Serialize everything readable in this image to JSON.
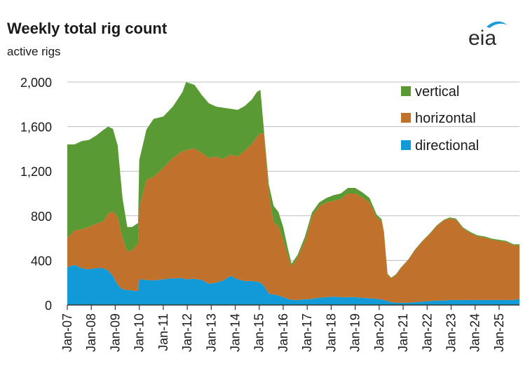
{
  "header": {
    "title": "Weekly total rig count",
    "subtitle": "active rigs",
    "logo_text": "eia"
  },
  "colors": {
    "vertical": "#5a9a34",
    "horizontal": "#c0712b",
    "directional": "#129ad8",
    "grid": "#bfbfbf",
    "axis": "#333333",
    "logo_blue": "#1d9bd7"
  },
  "chart_data": {
    "type": "area",
    "stacked": true,
    "ylim": [
      0,
      2000
    ],
    "yticks": [
      0,
      400,
      800,
      1200,
      1600,
      2000
    ],
    "ytick_labels": [
      "0",
      "400",
      "800",
      "1,200",
      "1,600",
      "2,000"
    ],
    "xlim": [
      2007.0,
      2025.85
    ],
    "xticks": [
      2007,
      2008,
      2009,
      2010,
      2011,
      2012,
      2013,
      2014,
      2015,
      2016,
      2017,
      2018,
      2019,
      2020,
      2021,
      2022,
      2023,
      2024,
      2025
    ],
    "xtick_labels": [
      "Jan-07",
      "Jan-08",
      "Jan-09",
      "Jan-10",
      "Jan-11",
      "Jan-12",
      "Jan-13",
      "Jan-14",
      "Jan-15",
      "Jan-16",
      "Jan-17",
      "Jan-18",
      "Jan-19",
      "Jan-20",
      "Jan-21",
      "Jan-22",
      "Jan-23",
      "Jan-24",
      "Jan-25"
    ],
    "legend": {
      "placement": "top-right",
      "order": [
        "vertical",
        "horizontal",
        "directional"
      ]
    },
    "grid": "horizontal",
    "x": [
      2007.0,
      2007.3,
      2007.6,
      2007.9,
      2008.2,
      2008.5,
      2008.7,
      2008.9,
      2009.1,
      2009.3,
      2009.5,
      2009.7,
      2009.95,
      2010.0,
      2010.3,
      2010.6,
      2011.0,
      2011.4,
      2011.8,
      2011.95,
      2012.3,
      2012.6,
      2012.9,
      2013.2,
      2013.5,
      2013.8,
      2014.1,
      2014.4,
      2014.7,
      2014.9,
      2015.05,
      2015.2,
      2015.4,
      2015.6,
      2015.8,
      2016.0,
      2016.2,
      2016.35,
      2016.6,
      2016.9,
      2017.2,
      2017.5,
      2017.8,
      2018.1,
      2018.4,
      2018.7,
      2019.0,
      2019.3,
      2019.6,
      2019.9,
      2020.1,
      2020.2,
      2020.35,
      2020.5,
      2020.7,
      2020.9,
      2021.2,
      2021.5,
      2021.8,
      2022.1,
      2022.4,
      2022.7,
      2022.95,
      2023.2,
      2023.5,
      2023.8,
      2024.1,
      2024.4,
      2024.7,
      2025.0,
      2025.3,
      2025.6,
      2025.85
    ],
    "series": [
      {
        "name": "directional",
        "values": [
          340,
          360,
          330,
          320,
          330,
          330,
          310,
          260,
          180,
          140,
          135,
          130,
          125,
          230,
          225,
          220,
          230,
          240,
          240,
          230,
          235,
          225,
          190,
          200,
          220,
          260,
          230,
          215,
          215,
          210,
          200,
          170,
          100,
          95,
          85,
          70,
          55,
          45,
          45,
          50,
          55,
          65,
          70,
          75,
          70,
          70,
          70,
          65,
          60,
          55,
          50,
          45,
          35,
          25,
          20,
          20,
          20,
          25,
          30,
          35,
          40,
          40,
          45,
          45,
          45,
          45,
          45,
          45,
          45,
          45,
          45,
          45,
          55
        ]
      },
      {
        "name": "horizontal",
        "values": [
          260,
          310,
          350,
          380,
          400,
          420,
          510,
          580,
          610,
          460,
          345,
          360,
          430,
          650,
          900,
          930,
          1000,
          1080,
          1140,
          1160,
          1170,
          1140,
          1130,
          1130,
          1090,
          1090,
          1100,
          1170,
          1230,
          1300,
          1340,
          1370,
          900,
          650,
          620,
          520,
          380,
          300,
          380,
          520,
          740,
          820,
          850,
          860,
          880,
          930,
          930,
          900,
          860,
          730,
          700,
          600,
          240,
          215,
          250,
          310,
          380,
          470,
          540,
          600,
          670,
          720,
          730,
          720,
          640,
          600,
          570,
          560,
          540,
          530,
          520,
          490,
          480
        ]
      },
      {
        "name": "vertical",
        "values": [
          840,
          770,
          790,
          780,
          790,
          820,
          780,
          740,
          640,
          360,
          220,
          210,
          180,
          420,
          450,
          520,
          460,
          460,
          530,
          610,
          570,
          520,
          490,
          450,
          460,
          410,
          420,
          400,
          400,
          400,
          390,
          20,
          80,
          145,
          130,
          110,
          65,
          25,
          25,
          40,
          35,
          35,
          40,
          50,
          50,
          50,
          50,
          45,
          40,
          25,
          20,
          15,
          5,
          5,
          5,
          5,
          5,
          5,
          5,
          5,
          5,
          5,
          10,
          10,
          10,
          10,
          10,
          10,
          10,
          10,
          10,
          10,
          10
        ]
      }
    ]
  }
}
